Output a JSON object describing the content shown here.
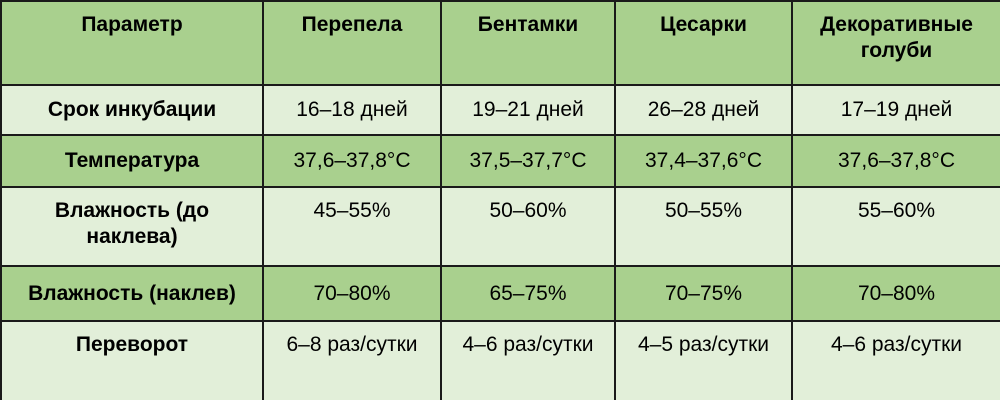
{
  "table": {
    "header": [
      "Параметр",
      "Перепела",
      "Бентамки",
      "Цесарки",
      "Декоративные голуби"
    ],
    "rows": [
      [
        "Срок инкубации",
        "16–18 дней",
        "19–21 дней",
        "26–28 дней",
        "17–19 дней"
      ],
      [
        "Температура",
        "37,6–37,8°C",
        "37,5–37,7°C",
        "37,4–37,6°C",
        "37,6–37,8°C"
      ],
      [
        "Влажность (до наклева)",
        "45–55%",
        "50–60%",
        "50–55%",
        "55–60%"
      ],
      [
        "Влажность (наклев)",
        "70–80%",
        "65–75%",
        "70–75%",
        "70–80%"
      ],
      [
        "Переворот",
        "6–8 раз/сутки",
        "4–6 раз/сутки",
        "4–5 раз/сутки",
        "4–6 раз/сутки"
      ]
    ]
  }
}
